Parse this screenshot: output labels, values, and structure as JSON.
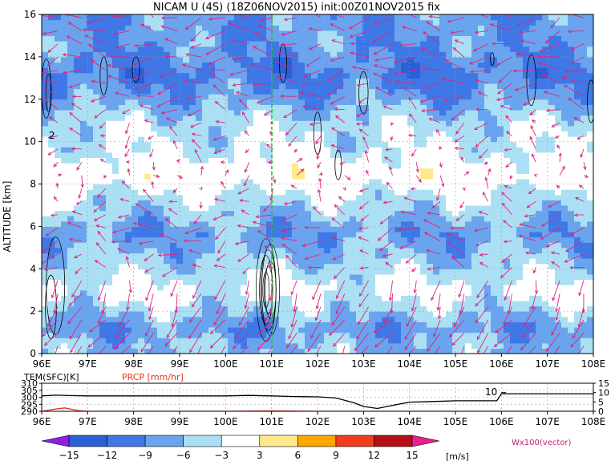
{
  "chart_data": [
    {
      "type": "heatmap",
      "title": "NICAM U (4S) (18Z06NOV2015) init:00Z01NOV2015 fix",
      "ylabel": "ALTITUDE [km]",
      "xlim": [
        96,
        108
      ],
      "ylim": [
        0,
        16
      ],
      "x_ticks": [
        "96E",
        "97E",
        "98E",
        "99E",
        "100E",
        "101E",
        "102E",
        "103E",
        "104E",
        "105E",
        "106E",
        "107E",
        "108E"
      ],
      "y_ticks": [
        "0",
        "2",
        "4",
        "6",
        "8",
        "10",
        "12",
        "14",
        "16"
      ],
      "grid": true,
      "marker_line_x": 101,
      "contour_label": "2",
      "colorbar": {
        "ticks": [
          "−15",
          "−12",
          "−9",
          "−6",
          "−3",
          "3",
          "6",
          "9",
          "12",
          "15"
        ],
        "unit": "[m/s]",
        "colors": [
          "#8f1fe6",
          "#2a5fd6",
          "#3f78e6",
          "#6aa4ee",
          "#abe0f4",
          "#ffffff",
          "#ffe98c",
          "#ffa600",
          "#f23c1e",
          "#b40e16",
          "#e81f8c"
        ]
      },
      "vector_note": "Wx100(vector)",
      "vector_color": "#e0247c",
      "bands": [
        {
          "alt": 14.6,
          "val": -8
        },
        {
          "alt": 13.2,
          "val": -10
        },
        {
          "alt": 12.2,
          "val": -8
        },
        {
          "alt": 10.8,
          "val": -4
        },
        {
          "alt": 9.5,
          "val": -3
        },
        {
          "alt": 8.4,
          "val": 1
        },
        {
          "alt": 7.6,
          "val": -3
        },
        {
          "alt": 6.8,
          "val": -5
        },
        {
          "alt": 5.7,
          "val": -8
        },
        {
          "alt": 4.7,
          "val": -6
        },
        {
          "alt": 3.8,
          "val": -4
        },
        {
          "alt": 3.0,
          "val": -2
        },
        {
          "alt": 2.0,
          "val": -5
        },
        {
          "alt": 1.2,
          "val": -8
        },
        {
          "alt": 0.4,
          "val": -6
        }
      ]
    },
    {
      "type": "line",
      "series_labels": [
        "TEM(SFC)[K]",
        "PRCP [mm/hr]"
      ],
      "xlim": [
        96,
        108
      ],
      "left_axis": {
        "ylim": [
          290,
          310
        ],
        "ticks": [
          "290",
          "295",
          "300",
          "305",
          "310"
        ]
      },
      "right_axis": {
        "ylim": [
          0,
          15
        ],
        "ticks": [
          "0",
          "5",
          "10",
          "15"
        ]
      },
      "annotation": "10",
      "x_ticks": [
        "96E",
        "97E",
        "98E",
        "99E",
        "100E",
        "101E",
        "102E",
        "103E",
        "104E",
        "105E",
        "106E",
        "107E",
        "108E"
      ],
      "series": [
        {
          "name": "TEM(SFC)[K]",
          "color": "#000000",
          "x": [
            96,
            96.3,
            96.6,
            97,
            98,
            99,
            100,
            100.5,
            101,
            101.5,
            102,
            102.4,
            102.8,
            103,
            103.3,
            103.6,
            104,
            104.5,
            105,
            105.5,
            105.9,
            106,
            108
          ],
          "y": [
            301,
            301.5,
            301.2,
            301,
            301,
            301,
            301,
            301.3,
            301,
            300.5,
            300.3,
            299.5,
            296,
            293.5,
            292,
            294,
            296.5,
            297,
            297.5,
            297.5,
            297.5,
            302.5,
            302.5
          ]
        },
        {
          "name": "PRCP [mm/hr]",
          "color": "#e8341c",
          "x": [
            96,
            96.3,
            96.5,
            96.8,
            97,
            98,
            99,
            100,
            101,
            102,
            103,
            104,
            105,
            106,
            107,
            108
          ],
          "y": [
            0,
            1.2,
            1.8,
            0.4,
            0,
            0,
            0,
            0,
            0.2,
            0,
            0,
            0,
            0,
            0,
            0,
            0
          ]
        }
      ]
    }
  ]
}
